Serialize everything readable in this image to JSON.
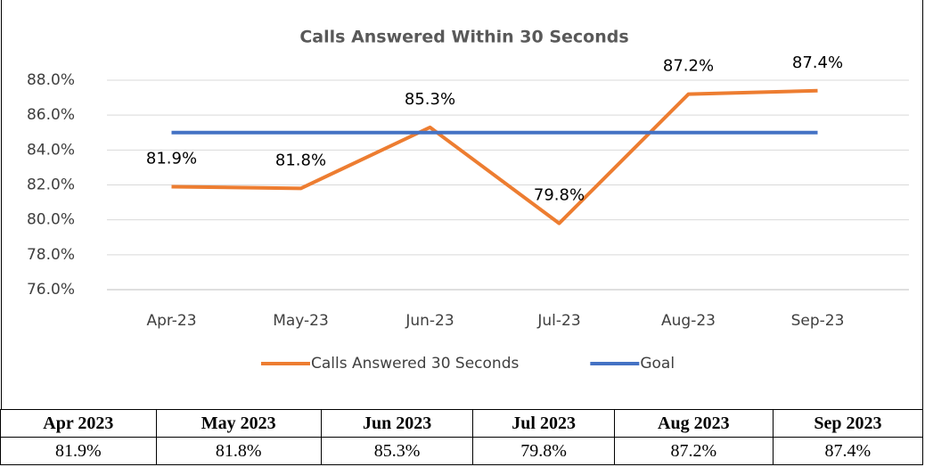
{
  "chart_data": {
    "type": "line",
    "title": "Calls Answered Within 30 Seconds",
    "categories": [
      "Apr-23",
      "May-23",
      "Jun-23",
      "Jul-23",
      "Aug-23",
      "Sep-23"
    ],
    "series": [
      {
        "name": "Calls Answered 30 Seconds",
        "color": "#ed7d31",
        "values": [
          81.9,
          81.8,
          85.3,
          79.8,
          87.2,
          87.4
        ],
        "value_labels": [
          "81.9%",
          "81.8%",
          "85.3%",
          "79.8%",
          "87.2%",
          "87.4%"
        ]
      },
      {
        "name": "Goal",
        "color": "#4472c4",
        "values": [
          85,
          85,
          85,
          85,
          85,
          85
        ]
      }
    ],
    "ylim": [
      76,
      88
    ],
    "yticks": [
      {
        "value": 76,
        "label": "76.0%"
      },
      {
        "value": 78,
        "label": "78.0%"
      },
      {
        "value": 80,
        "label": "80.0%"
      },
      {
        "value": 82,
        "label": "82.0%"
      },
      {
        "value": 84,
        "label": "84.0%"
      },
      {
        "value": 86,
        "label": "86.0%"
      },
      {
        "value": 88,
        "label": "88.0%"
      }
    ],
    "grid": true,
    "legend": "bottom"
  },
  "table": {
    "header": [
      "Apr 2023",
      "May 2023",
      "Jun 2023",
      "Jul 2023",
      "Aug 2023",
      "Sep 2023"
    ],
    "rows": [
      [
        "81.9%",
        "81.8%",
        "85.3%",
        "79.8%",
        "87.2%",
        "87.4%"
      ]
    ]
  }
}
